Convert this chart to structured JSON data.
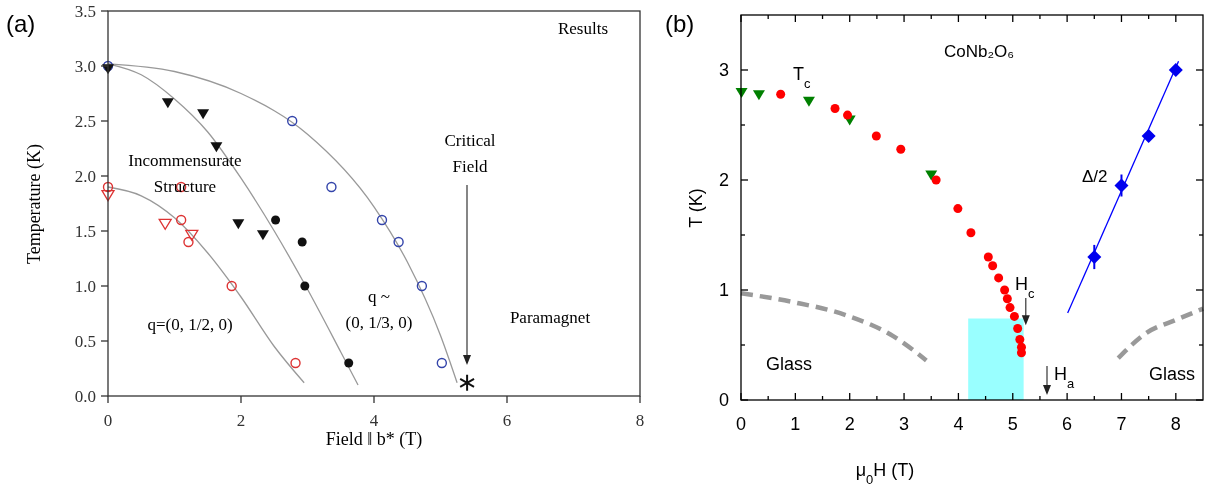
{
  "chart_data": [
    {
      "type": "scatter",
      "xlabel": "Field ‖ b* (T)",
      "ylabel": "Temperature (K)",
      "xlim": [
        0,
        8
      ],
      "xticks": [
        0,
        2,
        4,
        6,
        8
      ],
      "ylim": [
        0,
        3.5
      ],
      "yticks": [
        {
          "value": 0,
          "label": "0.0"
        },
        {
          "value": 0.5,
          "label": "0.5"
        },
        {
          "value": 1,
          "label": "1.0"
        },
        {
          "value": 1.5,
          "label": "1.5"
        },
        {
          "value": 2,
          "label": "2.0"
        },
        {
          "value": 2.5,
          "label": "2.5"
        },
        {
          "value": 3,
          "label": "3.0"
        },
        {
          "value": 3.5,
          "label": "3.5"
        }
      ],
      "series": [
        {
          "type": "line",
          "color": "#999999",
          "x": [
            0,
            1,
            2,
            3,
            4,
            4.5,
            5,
            5.25
          ],
          "values": [
            3.02,
            2.95,
            2.75,
            2.38,
            1.72,
            1.22,
            0.55,
            0.12
          ]
        },
        {
          "type": "line",
          "color": "#999999",
          "x": [
            0,
            0.5,
            1,
            1.5,
            2,
            2.5,
            3,
            3.5,
            3.76
          ],
          "values": [
            3.02,
            2.92,
            2.7,
            2.4,
            1.98,
            1.5,
            0.97,
            0.4,
            0.1
          ]
        },
        {
          "type": "line",
          "color": "#999999",
          "x": [
            0,
            0.5,
            1,
            1.5,
            2,
            2.5,
            2.95
          ],
          "values": [
            1.9,
            1.82,
            1.62,
            1.3,
            0.9,
            0.45,
            0.12
          ]
        },
        {
          "color": "#3344aa",
          "marker": "circle-open",
          "x": [
            0,
            2.77,
            3.36,
            4.12,
            4.37,
            4.72,
            5.02
          ],
          "values": [
            3.0,
            2.5,
            1.9,
            1.6,
            1.4,
            1.0,
            0.3
          ]
        },
        {
          "color": "#111111",
          "marker": "triangle-down",
          "x": [
            0,
            0.9,
            1.43,
            1.63,
            1.96,
            2.33
          ],
          "values": [
            2.98,
            2.67,
            2.57,
            2.27,
            1.57,
            1.47
          ]
        },
        {
          "color": "#111111",
          "marker": "circle",
          "x": [
            2.52,
            2.92,
            2.96,
            3.62
          ],
          "values": [
            1.6,
            1.4,
            1.0,
            0.3
          ]
        },
        {
          "color": "#dd3333",
          "marker": "circle-open",
          "x": [
            0,
            1.1,
            1.1,
            1.21,
            1.86,
            2.82
          ],
          "values": [
            1.9,
            1.9,
            1.6,
            1.4,
            1.0,
            0.3
          ]
        },
        {
          "color": "#dd3333",
          "marker": "triangle-down-open",
          "x": [
            0,
            0.86,
            1.26
          ],
          "values": [
            1.83,
            1.57,
            1.47
          ]
        },
        {
          "color": "#111111",
          "marker": "cross",
          "x": [
            5.4
          ],
          "values": [
            0.12
          ]
        }
      ],
      "annotations": [
        "(a)",
        "Results",
        "Incommensurate Structure",
        "q=(0, 1/2, 0)",
        "q ~ (0, 1/3, 0)",
        "Critical Field",
        "Paramagnet"
      ]
    },
    {
      "type": "scatter",
      "xlabel": "μ$_{0}$H (T)",
      "ylabel": "T (K)",
      "xlim": [
        0,
        8.5
      ],
      "xticks": [
        0,
        {
          "value": 0.5,
          "label": null
        },
        1,
        {
          "value": 1.5,
          "label": null
        },
        2,
        {
          "value": 2.5,
          "label": null
        },
        3,
        {
          "value": 3.5,
          "label": null
        },
        4,
        {
          "value": 4.5,
          "label": null
        },
        5,
        {
          "value": 5.5,
          "label": null
        },
        6,
        {
          "value": 6.5,
          "label": null
        },
        7,
        {
          "value": 7.5,
          "label": null
        },
        8
      ],
      "ylim": [
        0,
        3.5
      ],
      "yticks": [
        0,
        {
          "value": 0.5,
          "label": null
        },
        1,
        {
          "value": 1.5,
          "label": null
        },
        2,
        {
          "value": 2.5,
          "label": null
        },
        3
      ],
      "series": [
        {
          "type": "area",
          "color": "#99ffff",
          "x": [
            4.18,
            5.2
          ],
          "values": [
            0.74,
            0.74
          ]
        },
        {
          "type": "line",
          "color": "#999999",
          "line_style": "dashed",
          "x": [
            0,
            0.96,
            1.94,
            2.8,
            3.41
          ],
          "values": [
            0.97,
            0.89,
            0.77,
            0.58,
            0.36
          ]
        },
        {
          "type": "line",
          "color": "#999999",
          "line_style": "dashed",
          "x": [
            6.94,
            7.46,
            8.01,
            8.5
          ],
          "values": [
            0.38,
            0.61,
            0.73,
            0.83
          ]
        },
        {
          "type": "line",
          "color": "#0000ff",
          "x": [
            6.01,
            8.05
          ],
          "values": [
            0.79,
            3.08
          ]
        },
        {
          "color": "#008000",
          "marker": "triangle-down",
          "x": [
            0.01,
            0.33,
            1.25,
            2.0,
            3.5
          ],
          "values": [
            2.8,
            2.78,
            2.72,
            2.55,
            2.05
          ]
        },
        {
          "color": "#ff0000",
          "marker": "circle",
          "x": [
            0.73,
            1.73,
            1.96,
            2.49,
            2.94,
            3.59,
            3.99,
            4.23,
            4.55,
            4.63,
            4.74,
            4.85,
            4.9,
            4.95,
            5.03,
            5.09,
            5.13,
            5.16,
            5.16
          ],
          "values": [
            2.78,
            2.65,
            2.59,
            2.4,
            2.28,
            2.0,
            1.74,
            1.52,
            1.3,
            1.22,
            1.11,
            1.0,
            0.92,
            0.84,
            0.76,
            0.65,
            0.55,
            0.48,
            0.43
          ]
        },
        {
          "color": "#0000ee",
          "marker": "diamond",
          "x": [
            6.5,
            7.0,
            7.5,
            8.0
          ],
          "values": [
            1.3,
            1.95,
            2.4,
            3.0
          ],
          "errors": [
            0.11,
            0.1,
            null,
            null
          ]
        }
      ],
      "annotations": [
        "(b)",
        "CoNb₂O₆",
        "T$_{c}$",
        "Δ/2",
        {
          "text": "H$_{c}$",
          "x": 5.24,
          "y": 0.68
        },
        "H$_{a}$",
        "Glass",
        "Glass"
      ]
    }
  ]
}
